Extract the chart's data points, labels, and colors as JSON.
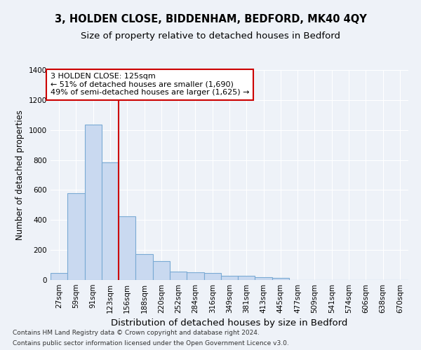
{
  "title": "3, HOLDEN CLOSE, BIDDENHAM, BEDFORD, MK40 4QY",
  "subtitle": "Size of property relative to detached houses in Bedford",
  "xlabel": "Distribution of detached houses by size in Bedford",
  "ylabel": "Number of detached properties",
  "categories": [
    "27sqm",
    "59sqm",
    "91sqm",
    "123sqm",
    "156sqm",
    "188sqm",
    "220sqm",
    "252sqm",
    "284sqm",
    "316sqm",
    "349sqm",
    "381sqm",
    "413sqm",
    "445sqm",
    "477sqm",
    "509sqm",
    "541sqm",
    "574sqm",
    "606sqm",
    "638sqm",
    "670sqm"
  ],
  "values": [
    45,
    578,
    1035,
    785,
    425,
    175,
    128,
    58,
    50,
    45,
    28,
    28,
    20,
    12,
    0,
    0,
    0,
    0,
    0,
    0,
    0
  ],
  "bar_color": "#c9d9f0",
  "bar_edge_color": "#7aaad4",
  "bar_edge_width": 0.8,
  "property_line_x": 3.5,
  "property_line_color": "#cc0000",
  "annotation_text": "3 HOLDEN CLOSE: 125sqm\n← 51% of detached houses are smaller (1,690)\n49% of semi-detached houses are larger (1,625) →",
  "annotation_box_color": "#ffffff",
  "annotation_box_edge_color": "#cc0000",
  "ylim": [
    0,
    1400
  ],
  "yticks": [
    0,
    200,
    400,
    600,
    800,
    1000,
    1200,
    1400
  ],
  "background_color": "#eef2f8",
  "grid_color": "#ffffff",
  "footer_line1": "Contains HM Land Registry data © Crown copyright and database right 2024.",
  "footer_line2": "Contains public sector information licensed under the Open Government Licence v3.0.",
  "title_fontsize": 10.5,
  "subtitle_fontsize": 9.5,
  "xlabel_fontsize": 9.5,
  "ylabel_fontsize": 8.5,
  "tick_fontsize": 7.5,
  "annotation_fontsize": 8,
  "footer_fontsize": 6.5
}
